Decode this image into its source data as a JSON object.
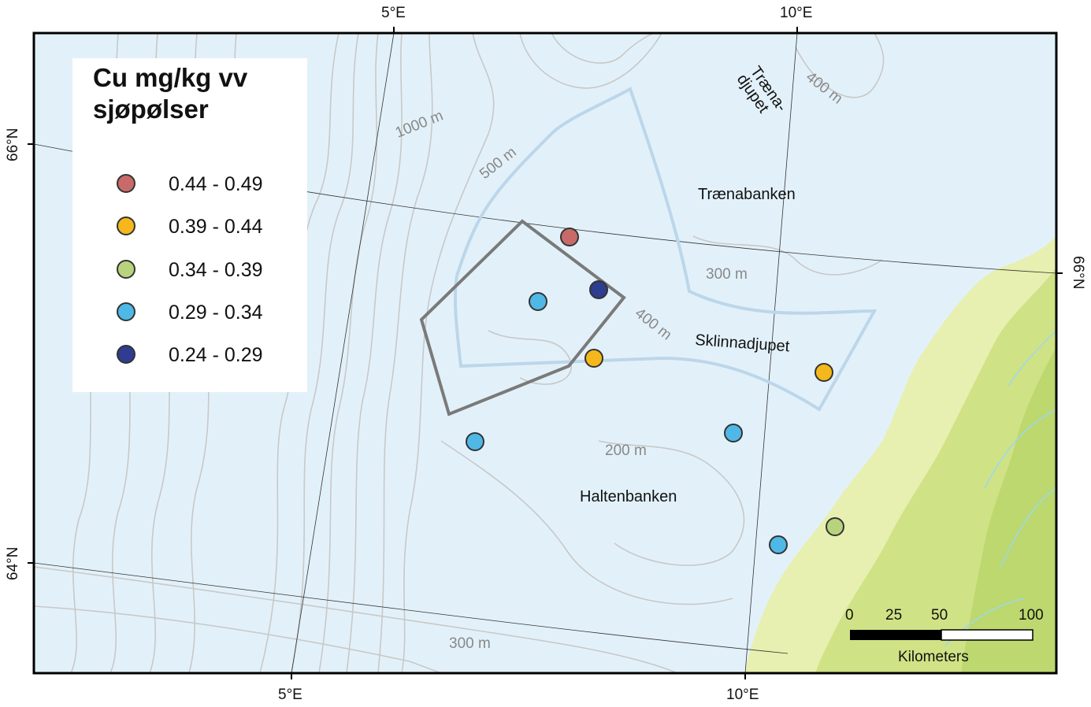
{
  "frame_labels": {
    "top_5e": "5°E",
    "top_10e": "10°E",
    "bottom_5e": "5°E",
    "bottom_10e": "10°E",
    "left_66n": "66°N",
    "left_64n": "64°N",
    "right_66n": "66°N"
  },
  "legend": {
    "title_line1": "Cu mg/kg vv",
    "title_line2": "sjøpølser",
    "classes": [
      {
        "label": "0.44 - 0.49",
        "color": "#c96a6a"
      },
      {
        "label": "0.39 - 0.44",
        "color": "#f5b81c"
      },
      {
        "label": "0.34 - 0.39",
        "color": "#b8d37e"
      },
      {
        "label": "0.29 - 0.34",
        "color": "#4fb8e6"
      },
      {
        "label": "0.24 - 0.29",
        "color": "#2e3d8f"
      }
    ]
  },
  "places": {
    "traenadjupet_1": "Træna-",
    "traenadjupet_2": "djupet",
    "traenabanken": "Trænabanken",
    "sklinnadjupet": "Sklinnadjupet",
    "haltenbanken": "Haltenbanken"
  },
  "contours": {
    "c1000": "1000 m",
    "c500": "500 m",
    "c400a": "400 m",
    "c400b": "400 m",
    "c300a": "300 m",
    "c300b": "300 m",
    "c200": "200 m"
  },
  "scale_bar": {
    "t0": "0",
    "t25": "25",
    "t50": "50",
    "t100": "100",
    "unit": "Kilometers"
  },
  "colors": {
    "sea": "#e2f1f9",
    "land": "#e7f0b0",
    "contour": "#c4c4c4",
    "polygon": "#7a7a7a",
    "blue_outline": "#bcd6ea"
  }
}
